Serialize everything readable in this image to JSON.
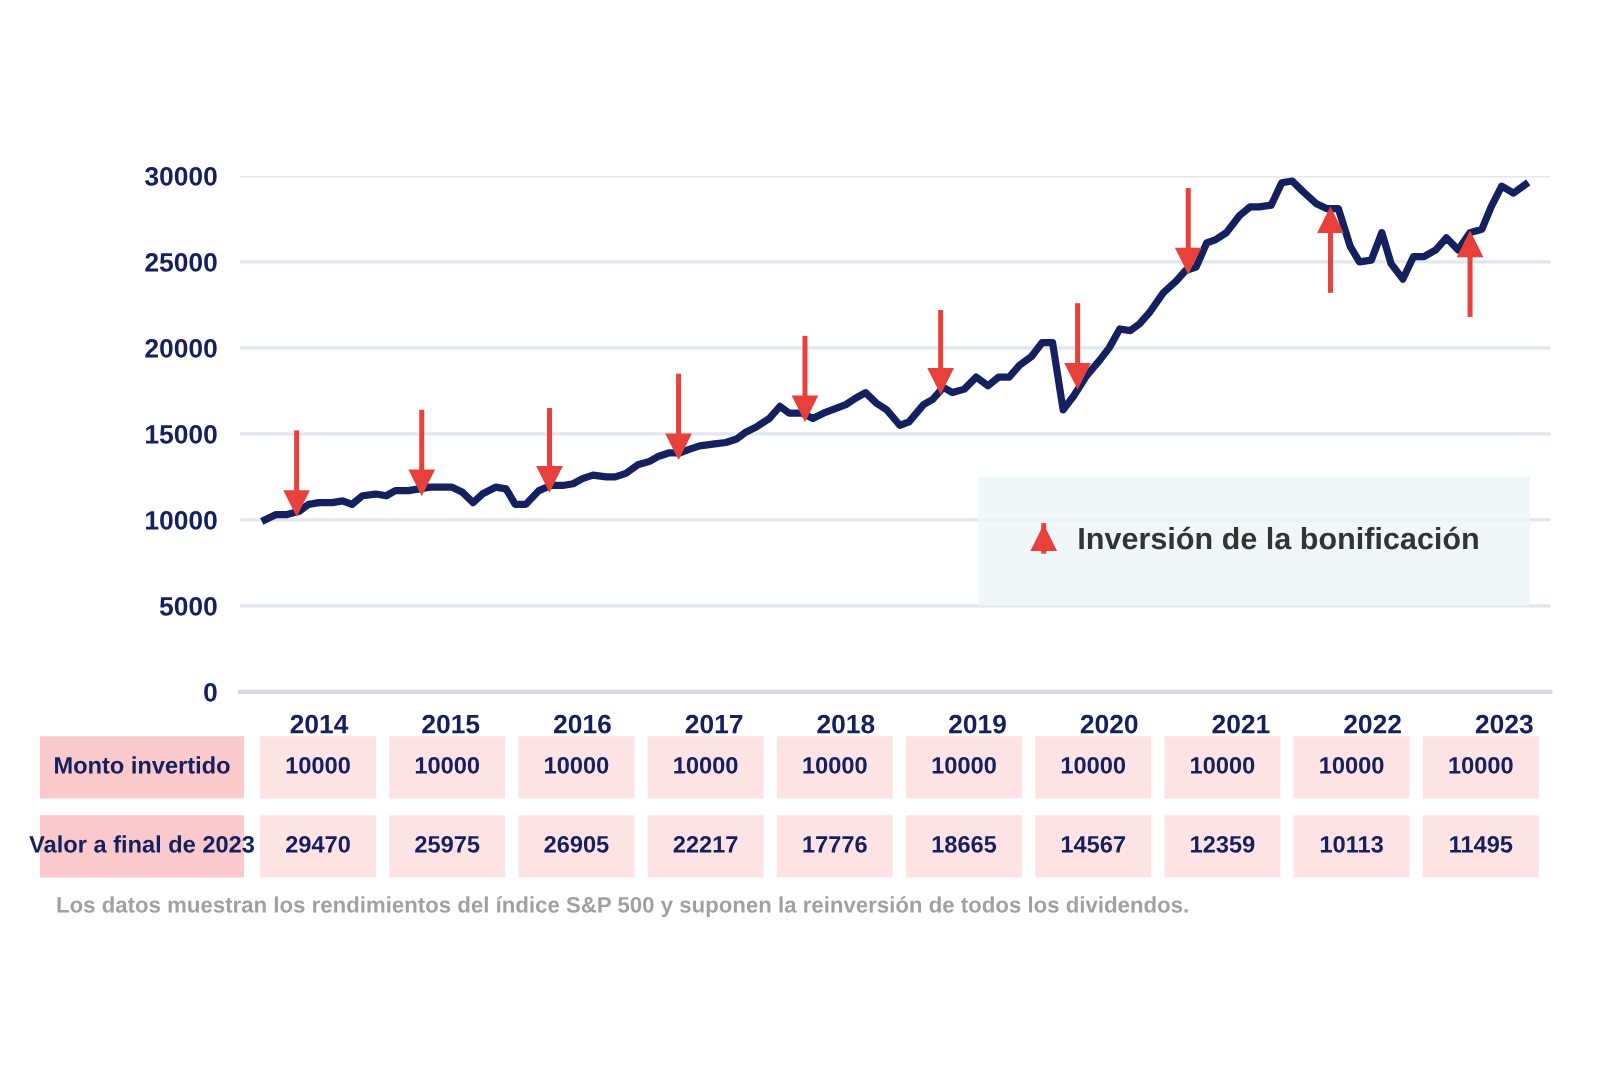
{
  "chart_data": [
    {
      "type": "line",
      "x": [
        2013.59,
        2013.67,
        2013.75,
        2013.85,
        2013.92,
        2014.0,
        2014.1,
        2014.18,
        2014.25,
        2014.33,
        2014.43,
        2014.51,
        2014.58,
        2014.68,
        2014.84,
        2015.01,
        2015.09,
        2015.17,
        2015.24,
        2015.34,
        2015.42,
        2015.49,
        2015.57,
        2015.67,
        2015.76,
        2015.85,
        2015.93,
        2016.0,
        2016.08,
        2016.18,
        2016.25,
        2016.33,
        2016.42,
        2016.51,
        2016.58,
        2016.66,
        2016.74,
        2016.81,
        2016.89,
        2016.99,
        2017.09,
        2017.17,
        2017.24,
        2017.32,
        2017.42,
        2017.5,
        2017.57,
        2017.67,
        2017.75,
        2017.83,
        2017.93,
        2018.0,
        2018.08,
        2018.15,
        2018.23,
        2018.31,
        2018.41,
        2018.48,
        2018.59,
        2018.66,
        2018.74,
        2018.81,
        2018.9,
        2018.99,
        2019.08,
        2019.16,
        2019.24,
        2019.32,
        2019.41,
        2019.49,
        2019.57,
        2019.65,
        2019.73,
        2019.83,
        2019.93,
        2020.0,
        2020.08,
        2020.16,
        2020.23,
        2020.31,
        2020.41,
        2020.51,
        2020.58,
        2020.66,
        2020.74,
        2020.81,
        2020.89,
        2020.99,
        2021.07,
        2021.14,
        2021.23,
        2021.31,
        2021.39,
        2021.47,
        2021.57,
        2021.65,
        2021.74,
        2021.83,
        2021.9,
        2021.99,
        2022.07,
        2022.14,
        2022.23,
        2022.31,
        2022.39,
        2022.48,
        2022.56,
        2022.65,
        2022.74,
        2022.83,
        2022.9,
        2022.98,
        2023.07,
        2023.16
      ],
      "series": [
        {
          "type": "line",
          "color": "#14215e",
          "values": [
            10000,
            10300,
            10300,
            10500,
            10900,
            11000,
            11000,
            11100,
            10900,
            11400,
            11500,
            11400,
            11700,
            11700,
            11900,
            11900,
            11600,
            11000,
            11500,
            11900,
            11800,
            10900,
            10900,
            11700,
            12000,
            12000,
            12100,
            12400,
            12600,
            12500,
            12500,
            12700,
            13200,
            13400,
            13700,
            13900,
            13900,
            14100,
            14300,
            14400,
            14500,
            14700,
            15100,
            15400,
            15900,
            16600,
            16200,
            16200,
            15900,
            16200,
            16500,
            16700,
            17100,
            17400,
            16800,
            16400,
            15500,
            15700,
            16700,
            17000,
            17700,
            17400,
            17600,
            18300,
            17800,
            18300,
            18300,
            19000,
            19500,
            20300,
            20300,
            16400,
            17200,
            18400,
            19300,
            20000,
            21100,
            21000,
            21400,
            22100,
            23200,
            23900,
            24500,
            24700,
            26100,
            26300,
            26700,
            27700,
            28200,
            28200,
            28300,
            29600,
            29700,
            29100,
            28400,
            28100,
            28100,
            25900,
            25000,
            25100,
            26700,
            24900,
            24000,
            25300,
            25300,
            25700,
            26400,
            25700,
            26700,
            26900,
            28200,
            29400,
            29000,
            29500
          ]
        },
        {
          "type": "scatter",
          "marker": "triangle",
          "color": "#e8403a",
          "x": [
            2013.83,
            2014.78,
            2015.75,
            2016.73,
            2017.69,
            2018.72,
            2019.76,
            2020.6
          ],
          "values": [
            11000,
            12200,
            12400,
            14300,
            16500,
            18100,
            18400,
            25100
          ],
          "errors": [
            [
              11000,
              15200
            ],
            [
              12200,
              16400
            ],
            [
              12400,
              16500
            ],
            [
              14300,
              18500
            ],
            [
              16500,
              20700
            ],
            [
              18100,
              22200
            ],
            [
              18400,
              22600
            ],
            [
              25100,
              29300
            ]
          ]
        },
        {
          "type": "scatter",
          "marker": "triangle",
          "color": "#e8403a",
          "name": "Inversión de la bonificación",
          "x": [
            2021.68,
            2022.74
          ],
          "values": [
            27400,
            26000
          ],
          "errors": [
            [
              23200,
              27400
            ],
            [
              21800,
              26000
            ]
          ]
        }
      ],
      "xlim": [
        2013.4,
        2023.35
      ],
      "xticks": [
        2014,
        2015,
        2016,
        2017,
        2018,
        2019,
        2020,
        2021,
        2022,
        2023
      ],
      "ylim": [
        0,
        30000
      ],
      "yticks": [
        0,
        5000,
        10000,
        15000,
        20000,
        25000,
        30000
      ],
      "grid": "y",
      "legend": "bottom right"
    },
    {
      "type": "other",
      "y_categories": [
        "Monto invertido",
        "Valor a final de 2023"
      ],
      "cells": [
        [
          "10000",
          "10000",
          "10000",
          "10000",
          "10000",
          "10000",
          "10000",
          "10000",
          "10000",
          "10000"
        ],
        [
          "29470",
          "25975",
          "26905",
          "22217",
          "17776",
          "18665",
          "14567",
          "12359",
          "10113",
          "11495"
        ]
      ],
      "annotations": [
        "Los datos muestran los rendimientos del índice S&P 500 y suponen la reinversión de todos los dividendos."
      ]
    }
  ]
}
